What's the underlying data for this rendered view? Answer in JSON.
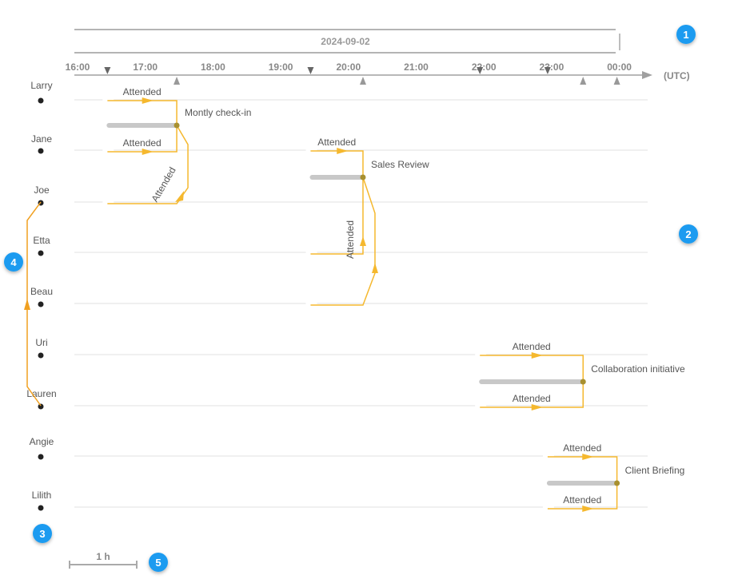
{
  "date_label": "2024-09-02",
  "timezone_label": "(UTC)",
  "hours": [
    "16:00",
    "17:00",
    "18:00",
    "19:00",
    "20:00",
    "21:00",
    "22:00",
    "23:00",
    "00:00"
  ],
  "people": [
    "Larry",
    "Jane",
    "Joe",
    "Etta",
    "Beau",
    "Uri",
    "Lauren",
    "Angie",
    "Lilith"
  ],
  "events": [
    {
      "name": "Montly check-in",
      "start": "16:30",
      "end": "17:30",
      "attendees": [
        {
          "person": "Larry",
          "label": "Attended"
        },
        {
          "person": "Jane",
          "label": "Attended"
        },
        {
          "person": "Joe",
          "label": "Attended"
        }
      ]
    },
    {
      "name": "Sales Review",
      "start": "19:30",
      "end": "20:15",
      "attendees": [
        {
          "person": "Jane",
          "label": "Attended"
        },
        {
          "person": "Etta",
          "label": "Attended"
        },
        {
          "person": "Beau",
          "label": ""
        }
      ]
    },
    {
      "name": "Collaboration initiative",
      "start": "22:00",
      "end": "23:30",
      "attendees": [
        {
          "person": "Uri",
          "label": "Attended"
        },
        {
          "person": "Lauren",
          "label": "Attended"
        }
      ]
    },
    {
      "name": "Client Briefing",
      "start": "23:00",
      "end": "00:00",
      "attendees": [
        {
          "person": "Angie",
          "label": "Attended"
        },
        {
          "person": "Lilith",
          "label": "Attended"
        }
      ]
    }
  ],
  "relation": {
    "from": "Lauren",
    "to": "Joe"
  },
  "scale_label": "1 h",
  "badges": [
    "1",
    "2",
    "3",
    "4",
    "5"
  ],
  "colors": {
    "attendance": "#f5b82e",
    "relation": "#f0a020",
    "event_bar": "#c8c8c8",
    "event_node": "#a89030",
    "badge": "#1a9bf0",
    "axis": "#a0a0a0"
  }
}
